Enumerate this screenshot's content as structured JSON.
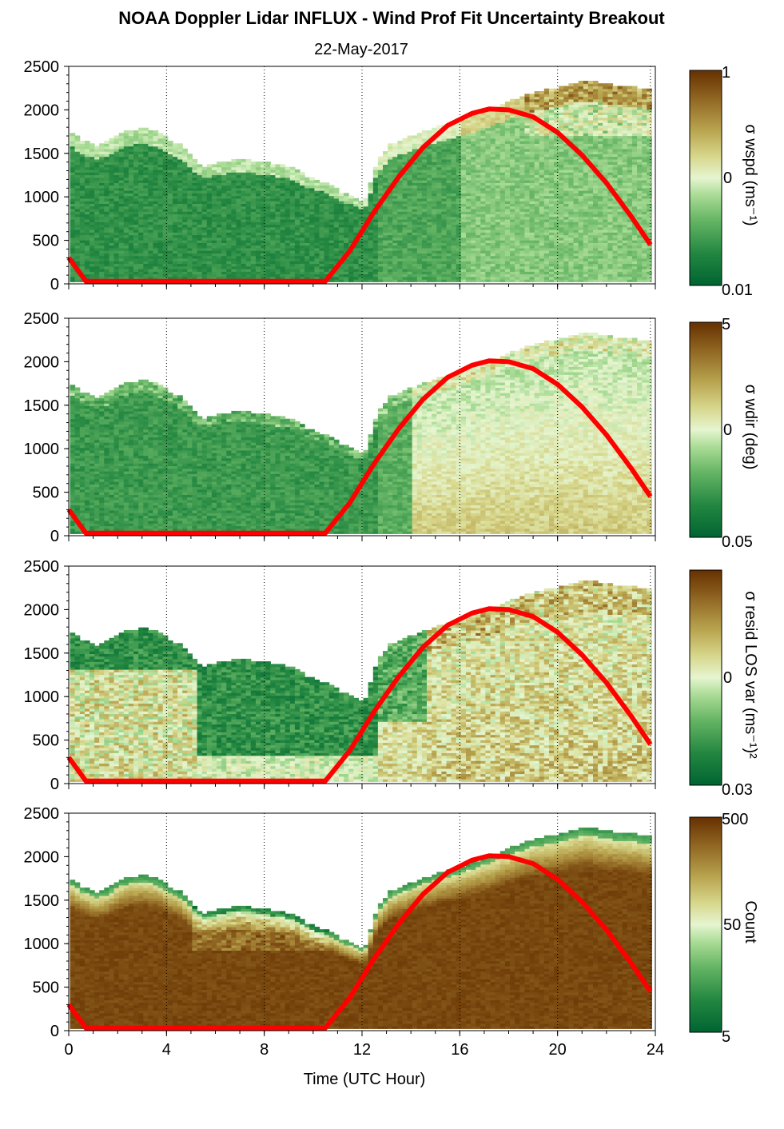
{
  "title": "NOAA Doppler Lidar INFLUX - Wind Prof Fit Uncertainty Breakout",
  "subtitle": "22-May-2017",
  "xlabel": "Time (UTC Hour)",
  "colors": {
    "colormap_low": "#006432",
    "colormap_mid": "#e6f5d0",
    "colormap_high": "#663000",
    "curve": "#ff0000"
  },
  "chart_data": {
    "type": "heatmap",
    "x_ticks": [
      "0",
      "4",
      "8",
      "12",
      "16",
      "20",
      "24"
    ],
    "x_tick_values": [
      0,
      4,
      8,
      12,
      16,
      20,
      24
    ],
    "xlim": [
      0,
      24
    ],
    "y_ticks": [
      "0",
      "500",
      "1000",
      "1500",
      "2000",
      "2500"
    ],
    "y_tick_values": [
      0,
      500,
      1000,
      1500,
      2000,
      2500
    ],
    "ylim": [
      0,
      2500
    ],
    "vertical_grid_hours": [
      4,
      8,
      12,
      16,
      20,
      23.8
    ],
    "data_top_profile": [
      [
        0,
        1740
      ],
      [
        0.4,
        1650
      ],
      [
        1,
        1580
      ],
      [
        1.5,
        1620
      ],
      [
        2,
        1720
      ],
      [
        2.5,
        1760
      ],
      [
        3,
        1770
      ],
      [
        3.5,
        1740
      ],
      [
        4,
        1650
      ],
      [
        4.5,
        1580
      ],
      [
        5,
        1420
      ],
      [
        5.5,
        1330
      ],
      [
        6,
        1380
      ],
      [
        7,
        1430
      ],
      [
        7.5,
        1400
      ],
      [
        8,
        1380
      ],
      [
        9,
        1330
      ],
      [
        9.8,
        1200
      ],
      [
        10.4,
        1150
      ],
      [
        11,
        1050
      ],
      [
        11.5,
        990
      ],
      [
        12,
        930
      ],
      [
        12.5,
        1380
      ],
      [
        13,
        1580
      ],
      [
        14,
        1700
      ],
      [
        15,
        1800
      ],
      [
        16,
        1880
      ],
      [
        17,
        1980
      ],
      [
        18,
        2100
      ],
      [
        19,
        2200
      ],
      [
        20,
        2250
      ],
      [
        21,
        2330
      ],
      [
        22,
        2280
      ],
      [
        23,
        2250
      ],
      [
        23.8,
        2220
      ]
    ],
    "curve_points": [
      [
        0,
        300
      ],
      [
        0.7,
        30
      ],
      [
        10.5,
        30
      ],
      [
        11.5,
        380
      ],
      [
        12.5,
        830
      ],
      [
        13.5,
        1230
      ],
      [
        14.5,
        1570
      ],
      [
        15.5,
        1820
      ],
      [
        16.5,
        1960
      ],
      [
        17.2,
        2010
      ],
      [
        18,
        2000
      ],
      [
        19,
        1920
      ],
      [
        20,
        1740
      ],
      [
        21,
        1480
      ],
      [
        22,
        1160
      ],
      [
        23,
        780
      ],
      [
        23.8,
        450
      ]
    ],
    "panels": [
      {
        "colorbar_label": "σ wspd (ms⁻¹)",
        "cb_ticks": [
          "1",
          "0",
          "0.01"
        ]
      },
      {
        "colorbar_label": "σ wdir (deg)",
        "cb_ticks": [
          "5",
          "0",
          "0.05"
        ]
      },
      {
        "colorbar_label": "σ resid LOS var (ms⁻¹)²",
        "cb_ticks": [
          "",
          "0",
          "0.03"
        ]
      },
      {
        "colorbar_label": "Count",
        "cb_ticks": [
          "500",
          "50",
          "5"
        ]
      }
    ]
  }
}
